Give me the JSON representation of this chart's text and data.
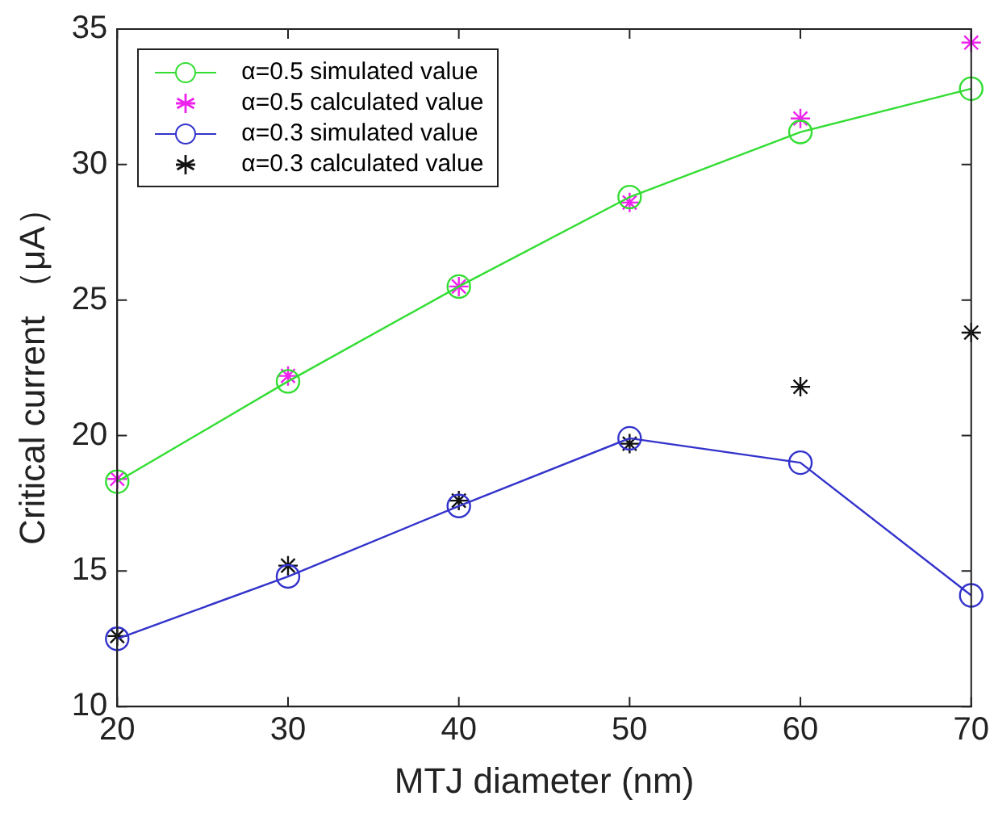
{
  "chart_data": {
    "type": "line",
    "xlabel": "MTJ diameter (nm)",
    "ylabel": "Critical current （μA）",
    "x": [
      20,
      30,
      40,
      50,
      60,
      70
    ],
    "xlim": [
      20,
      70
    ],
    "xticks": [
      20,
      30,
      40,
      50,
      60,
      70
    ],
    "ylim": [
      10,
      35
    ],
    "yticks": [
      10,
      15,
      20,
      25,
      30,
      35
    ],
    "grid": false,
    "legend": "top left",
    "series": [
      {
        "name": "α=0.5 simulated value",
        "type": "line",
        "marker": "circle",
        "color": "#33dd33",
        "values": [
          18.3,
          22.0,
          25.5,
          28.8,
          31.2,
          32.8
        ]
      },
      {
        "name": "α=0.5 calculated value",
        "type": "scatter",
        "marker": "cross",
        "color": "#ee22ee",
        "values": [
          18.4,
          22.2,
          25.5,
          28.6,
          31.7,
          34.5
        ]
      },
      {
        "name": "α=0.3 simulated value",
        "type": "line",
        "marker": "circle",
        "color": "#3333cc",
        "values": [
          12.5,
          14.8,
          17.4,
          19.9,
          19.0,
          14.1
        ]
      },
      {
        "name": "α=0.3 calculated value",
        "type": "scatter",
        "marker": "cross",
        "color": "#111111",
        "values": [
          12.6,
          15.2,
          17.6,
          19.7,
          21.8,
          23.8
        ]
      }
    ]
  }
}
